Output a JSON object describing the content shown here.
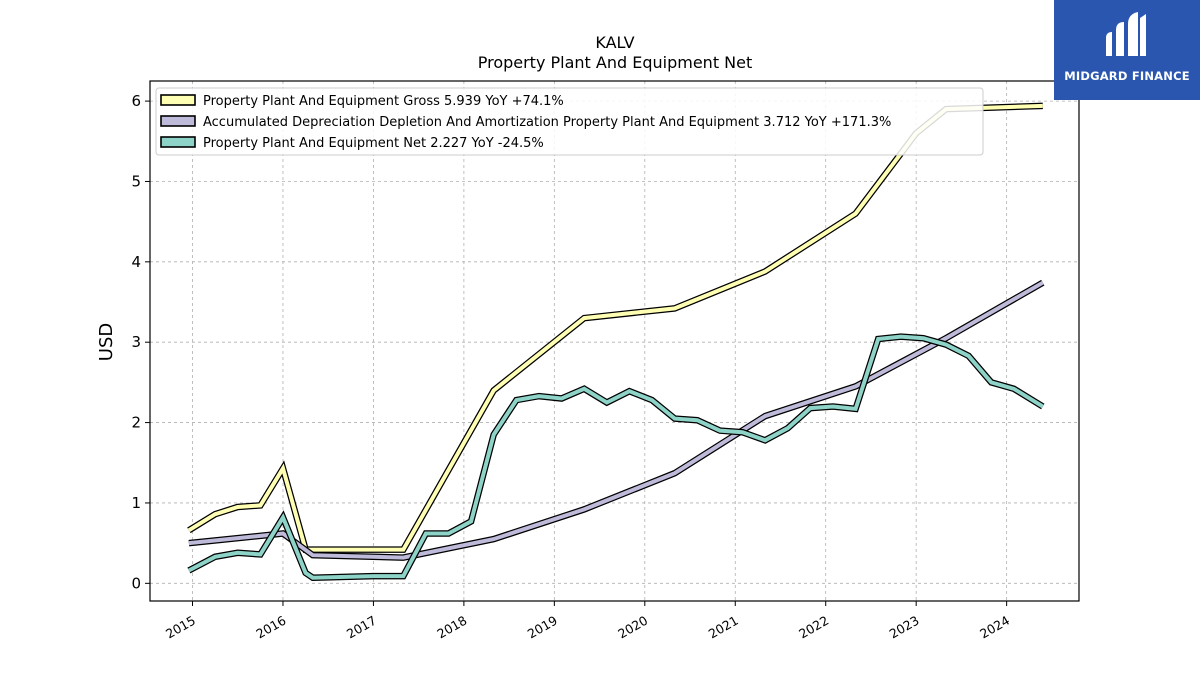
{
  "chart_data": {
    "type": "line",
    "title": "KALV",
    "subtitle": "Property Plant And Equipment Net",
    "xlabel": "",
    "ylabel": "USD",
    "xlim": [
      2014.53,
      2024.8
    ],
    "ylim": [
      -0.22,
      6.25
    ],
    "yticks": [
      0,
      1,
      2,
      3,
      4,
      5,
      6
    ],
    "xticks": [
      "2015",
      "2016",
      "2017",
      "2018",
      "2019",
      "2020",
      "2021",
      "2022",
      "2023",
      "2024"
    ],
    "grid": true,
    "legend_position": "top-left",
    "series": [
      {
        "name": "Property Plant And Equipment Gross",
        "legend": "Property Plant And Equipment Gross  5.939 YoY +74.1%",
        "color": "#ffffb3",
        "points": [
          [
            2014.96,
            0.66
          ],
          [
            2015.25,
            0.86
          ],
          [
            2015.5,
            0.95
          ],
          [
            2015.75,
            0.97
          ],
          [
            2016.0,
            1.43
          ],
          [
            2016.25,
            0.42
          ],
          [
            2016.33,
            0.42
          ],
          [
            2017.33,
            0.42
          ],
          [
            2018.33,
            2.4
          ],
          [
            2019.33,
            3.3
          ],
          [
            2020.33,
            3.42
          ],
          [
            2021.33,
            3.88
          ],
          [
            2022.33,
            4.6
          ],
          [
            2023.0,
            5.6
          ],
          [
            2023.33,
            5.9
          ],
          [
            2024.4,
            5.94
          ]
        ]
      },
      {
        "name": "Accumulated Depreciation Depletion And Amortization Property Plant And Equipment",
        "legend": "Accumulated Depreciation Depletion And Amortization Property Plant And Equipment  3.712 YoY +171.3%",
        "color": "#bebada",
        "points": [
          [
            2014.96,
            0.5
          ],
          [
            2016.0,
            0.62
          ],
          [
            2016.33,
            0.35
          ],
          [
            2017.33,
            0.32
          ],
          [
            2018.33,
            0.55
          ],
          [
            2019.33,
            0.92
          ],
          [
            2020.33,
            1.37
          ],
          [
            2021.33,
            2.08
          ],
          [
            2022.33,
            2.45
          ],
          [
            2023.33,
            3.05
          ],
          [
            2024.4,
            3.74
          ]
        ]
      },
      {
        "name": "Property Plant And Equipment Net",
        "legend": "Property Plant And Equipment Net  2.227 YoY -24.5%",
        "color": "#8dd3c7",
        "points": [
          [
            2014.96,
            0.16
          ],
          [
            2015.25,
            0.33
          ],
          [
            2015.5,
            0.38
          ],
          [
            2015.75,
            0.36
          ],
          [
            2016.0,
            0.82
          ],
          [
            2016.25,
            0.13
          ],
          [
            2016.33,
            0.07
          ],
          [
            2017.0,
            0.09
          ],
          [
            2017.33,
            0.09
          ],
          [
            2017.58,
            0.62
          ],
          [
            2017.83,
            0.62
          ],
          [
            2018.08,
            0.77
          ],
          [
            2018.33,
            1.85
          ],
          [
            2018.58,
            2.28
          ],
          [
            2018.83,
            2.33
          ],
          [
            2019.08,
            2.3
          ],
          [
            2019.33,
            2.42
          ],
          [
            2019.58,
            2.25
          ],
          [
            2019.83,
            2.39
          ],
          [
            2020.08,
            2.28
          ],
          [
            2020.33,
            2.05
          ],
          [
            2020.58,
            2.03
          ],
          [
            2020.83,
            1.9
          ],
          [
            2021.08,
            1.88
          ],
          [
            2021.33,
            1.78
          ],
          [
            2021.58,
            1.93
          ],
          [
            2021.83,
            2.18
          ],
          [
            2022.08,
            2.2
          ],
          [
            2022.33,
            2.17
          ],
          [
            2022.58,
            3.04
          ],
          [
            2022.83,
            3.07
          ],
          [
            2023.08,
            3.05
          ],
          [
            2023.33,
            2.97
          ],
          [
            2023.58,
            2.83
          ],
          [
            2023.83,
            2.5
          ],
          [
            2024.08,
            2.42
          ],
          [
            2024.4,
            2.2
          ]
        ]
      }
    ]
  },
  "branding": {
    "logo_text": "MIDGARD FINANCE",
    "logo_color": "#2a56b0"
  }
}
